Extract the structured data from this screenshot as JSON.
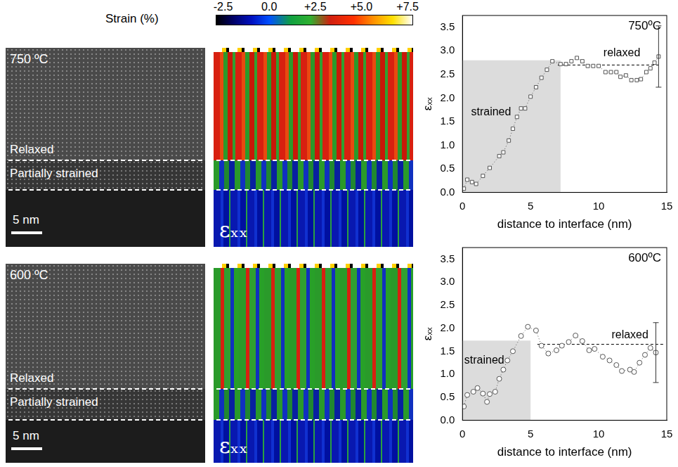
{
  "panels": {
    "colorbar": {
      "title": "Strain (%)",
      "range": [
        -2.9,
        7.8
      ],
      "ticks": [
        -2.5,
        {
          "value": 0,
          "label": "0.0"
        },
        {
          "value": 2.5,
          "label": "+2.5"
        },
        {
          "value": 5,
          "label": "+5.0"
        },
        {
          "value": 7.5,
          "label": "+7.5"
        }
      ]
    },
    "images": [
      {
        "temperature": "750 ºC",
        "relaxed": "Relaxed",
        "partially_strained": "Partially strained",
        "scale_bar": "5 nm",
        "map_label": "εₓₓ"
      },
      {
        "temperature": "600 ºC",
        "relaxed": "Relaxed",
        "partially_strained": "Partially strained",
        "scale_bar": "5 nm",
        "map_label": "εₓₓ"
      }
    ]
  },
  "chart_data": [
    {
      "type": "scatter",
      "title": "750ºC",
      "x_label": "distance to interface (nm)",
      "y_label": "εₓₓ",
      "xlim": [
        0,
        15
      ],
      "xticks": [
        0,
        5,
        10,
        15
      ],
      "ylim": [
        0,
        3.75
      ],
      "yticks": [
        {
          "value": 0,
          "label": "0.0"
        },
        0.5,
        {
          "value": 1,
          "label": "1.0"
        },
        1.5,
        {
          "value": 2,
          "label": "2.0"
        },
        2.5,
        {
          "value": 3,
          "label": "3.0"
        },
        3.5
      ],
      "grid": false,
      "color": "#555555",
      "marker": "square",
      "line_style": "dotted",
      "x": [
        0.1,
        0.35,
        0.7,
        1.0,
        1.5,
        2.0,
        2.7,
        3.0,
        3.4,
        3.7,
        4.0,
        4.3,
        4.6,
        5.0,
        5.4,
        5.8,
        6.2,
        6.6,
        7.2,
        7.6,
        8.0,
        8.4,
        8.8,
        9.2,
        9.6,
        10.0,
        10.5,
        10.9,
        11.3,
        11.6,
        12.0,
        12.4,
        12.8,
        13.1,
        13.5,
        13.8,
        14.1,
        14.4
      ],
      "values": [
        0.08,
        0.27,
        0.22,
        0.18,
        0.35,
        0.52,
        0.77,
        0.85,
        1.1,
        1.35,
        1.6,
        1.78,
        1.78,
        2.03,
        2.23,
        2.43,
        2.6,
        2.78,
        2.72,
        2.72,
        2.78,
        2.85,
        2.78,
        2.68,
        2.68,
        2.68,
        2.55,
        2.55,
        2.55,
        2.45,
        2.48,
        2.38,
        2.38,
        2.4,
        2.55,
        2.63,
        2.75,
        2.88
      ],
      "errors": [
        null,
        null,
        null,
        null,
        null,
        null,
        null,
        null,
        null,
        null,
        null,
        null,
        null,
        null,
        null,
        null,
        null,
        null,
        null,
        null,
        null,
        null,
        null,
        null,
        null,
        null,
        null,
        null,
        null,
        null,
        null,
        null,
        null,
        null,
        null,
        null,
        null,
        0.65
      ],
      "regions": [
        {
          "text": "strained",
          "xlim": [
            0,
            7.2
          ],
          "ylim": [
            0,
            2.8
          ],
          "text_x": 2.1,
          "text_y": 1.7
        }
      ],
      "hlines": [
        {
          "y": 2.7,
          "xlim": [
            7.0,
            14.4
          ],
          "line_style": "dashed"
        }
      ],
      "annotations": [
        {
          "text": "relaxed",
          "x": 11.7,
          "y": 2.95
        }
      ]
    },
    {
      "type": "scatter",
      "title": "600ºC",
      "x_label": "distance to interface (nm)",
      "y_label": "εₓₓ",
      "xlim": [
        0,
        15
      ],
      "xticks": [
        0,
        5,
        10,
        15
      ],
      "ylim": [
        0,
        3.75
      ],
      "yticks": [
        {
          "value": 0,
          "label": "0.0"
        },
        0.5,
        {
          "value": 1,
          "label": "1.0"
        },
        1.5,
        {
          "value": 2,
          "label": "2.0"
        },
        2.5,
        {
          "value": 3,
          "label": "3.0"
        },
        3.5
      ],
      "grid": false,
      "color": "#555555",
      "marker": "circle",
      "line_style": "dotted",
      "x": [
        0.1,
        0.35,
        0.8,
        1.1,
        1.5,
        1.8,
        2.0,
        2.4,
        2.7,
        3.0,
        3.3,
        3.7,
        4.3,
        4.8,
        5.4,
        5.8,
        6.3,
        6.9,
        7.3,
        7.8,
        8.3,
        8.8,
        9.3,
        9.7,
        10.3,
        10.8,
        11.3,
        11.7,
        12.3,
        12.6,
        13.0,
        13.4,
        13.8,
        14.2
      ],
      "values": [
        0.3,
        0.55,
        0.62,
        0.7,
        0.58,
        0.4,
        0.57,
        0.62,
        0.9,
        1.1,
        1.3,
        1.5,
        1.83,
        2.03,
        1.95,
        1.62,
        1.45,
        1.52,
        1.62,
        1.7,
        1.84,
        1.72,
        1.52,
        1.55,
        1.38,
        1.3,
        1.2,
        1.07,
        1.1,
        1.05,
        1.25,
        1.42,
        1.57,
        1.47
      ],
      "errors": [
        null,
        null,
        null,
        null,
        null,
        null,
        null,
        null,
        null,
        null,
        null,
        null,
        null,
        null,
        null,
        null,
        null,
        null,
        null,
        null,
        null,
        null,
        null,
        null,
        null,
        null,
        null,
        null,
        null,
        null,
        null,
        null,
        null,
        0.65
      ],
      "regions": [
        {
          "text": "strained",
          "xlim": [
            0,
            5.0
          ],
          "ylim": [
            0,
            1.73
          ],
          "text_x": 1.6,
          "text_y": 1.3
        }
      ],
      "hlines": [
        {
          "y": 1.65,
          "xlim": [
            5.5,
            14.8
          ],
          "line_style": "dashed"
        }
      ],
      "annotations": [
        {
          "text": "relaxed",
          "x": 12.3,
          "y": 1.85
        }
      ]
    }
  ]
}
